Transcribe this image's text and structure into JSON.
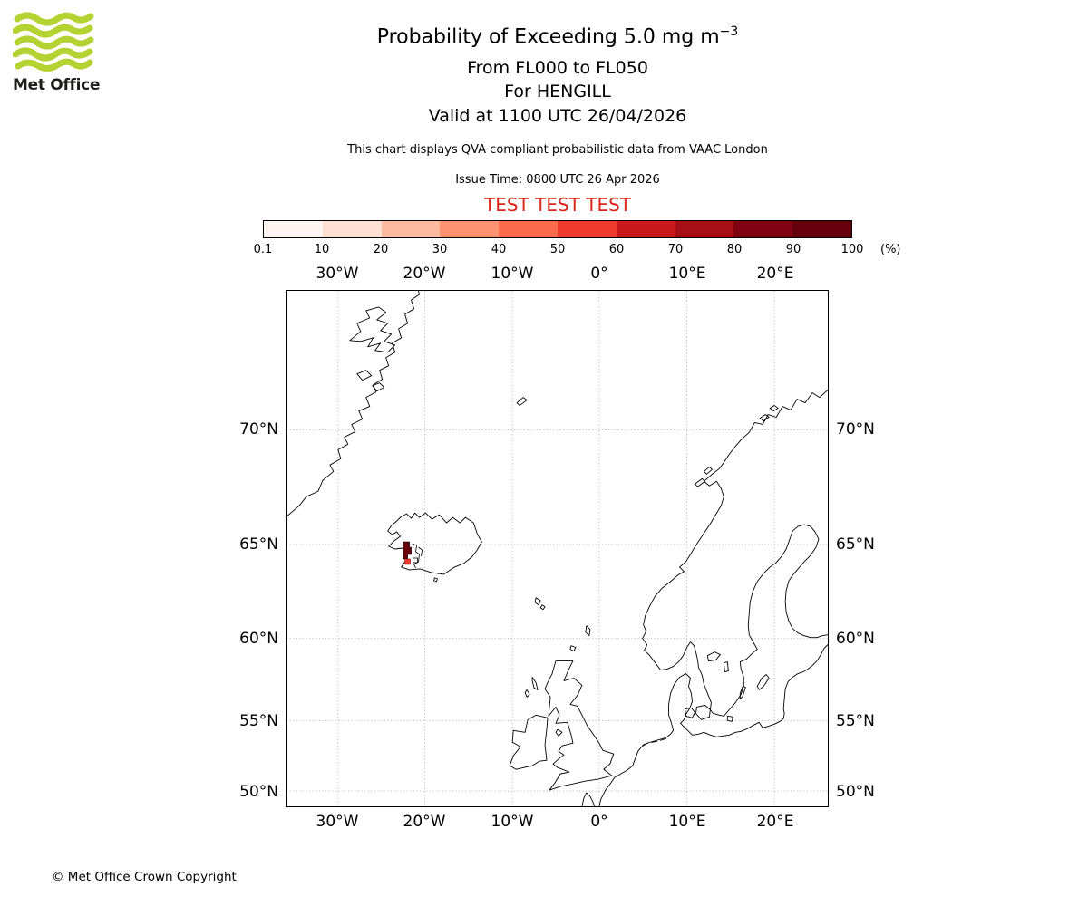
{
  "logo": {
    "text": "Met Office",
    "wave_color": "#b5d233"
  },
  "header": {
    "title_main": "Probability of Exceeding 5.0 mg m",
    "title_superscript": "−3",
    "line2": "From FL000 to FL050",
    "line3": "For HENGILL",
    "line4": "Valid at 1100 UTC 26/04/2026",
    "note": "This chart displays QVA compliant probabilistic data from VAAC London",
    "issue_time": "Issue Time: 0800 UTC 26 Apr 2026",
    "test_banner": "TEST TEST TEST",
    "test_color": "#d8261f"
  },
  "colorbar": {
    "ticks": [
      "0.1",
      "10",
      "20",
      "30",
      "40",
      "50",
      "60",
      "70",
      "80",
      "90",
      "100"
    ],
    "unit": "(%)",
    "colors": [
      "#fff5f0",
      "#fee0d2",
      "#fcbba1",
      "#fc9272",
      "#fb6a4a",
      "#ef3b2c",
      "#cb181d",
      "#a50f15",
      "#7f0310",
      "#67000d"
    ]
  },
  "axes": {
    "lon": [
      "30°W",
      "20°W",
      "10°W",
      "0°",
      "10°E",
      "20°E"
    ],
    "lat": [
      "70°N",
      "65°N",
      "60°N",
      "55°N",
      "50°N"
    ]
  },
  "footer": {
    "copyright": "© Met Office Crown Copyright"
  },
  "chart_data": {
    "type": "heatmap",
    "title": "Probability of Exceeding 5.0 mg m⁻³",
    "subtitles": [
      "From FL000 to FL050",
      "For HENGILL",
      "Valid at 1100 UTC 26/04/2026"
    ],
    "source_note": "This chart displays QVA compliant probabilistic data from VAAC London",
    "issue_time": "Issue Time: 0800 UTC 26 Apr 2026",
    "colorbar": {
      "unit": "%",
      "levels": [
        0.1,
        10,
        20,
        30,
        40,
        50,
        60,
        70,
        80,
        90,
        100
      ],
      "colors": [
        "#fff5f0",
        "#fee0d2",
        "#fcbba1",
        "#fc9272",
        "#fb6a4a",
        "#ef3b2c",
        "#cb181d",
        "#a50f15",
        "#7f0310",
        "#67000d"
      ]
    },
    "projection": "mercator-like, North Atlantic / NW Europe",
    "map_extent": {
      "lon_min": -36,
      "lon_max": 26,
      "lat_min": 49,
      "lat_max": 76
    },
    "x_ticks_deg": [
      -30,
      -20,
      -10,
      0,
      10,
      20
    ],
    "y_ticks_deg": [
      70,
      65,
      60,
      55,
      50
    ],
    "grid": true,
    "data_points": [
      {
        "lon": -21.4,
        "lat": 64.6,
        "probability_percent": "90-100",
        "note": "dark maroon cell cluster at Hengill, SW Iceland"
      },
      {
        "lon": -21.3,
        "lat": 64.2,
        "probability_percent": "50-60",
        "note": "bright red cell south of main cluster"
      },
      {
        "lon": -20.8,
        "lat": 64.4,
        "probability_percent": "0.1-10",
        "note": "black contour outline cells east of main cluster"
      }
    ]
  }
}
